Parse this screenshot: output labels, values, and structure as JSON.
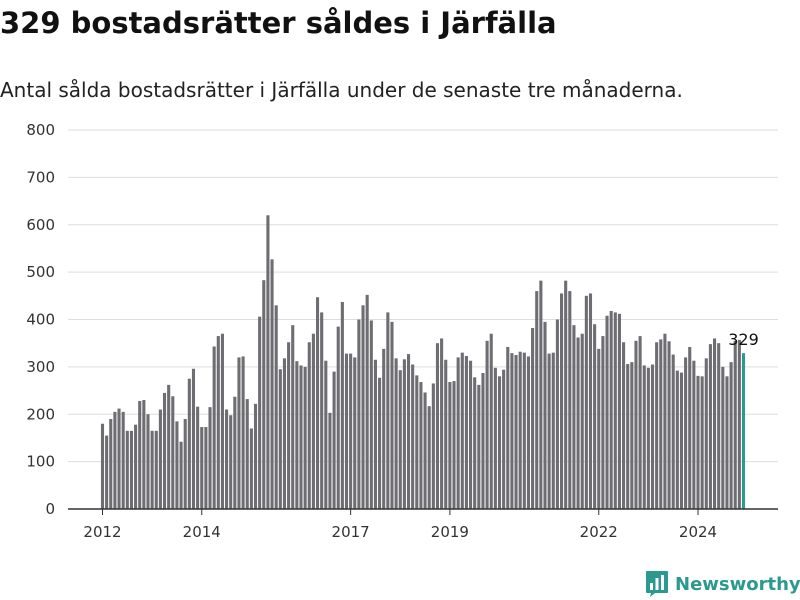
{
  "chart_data": {
    "type": "bar",
    "title": "329 bostadsrätter såldes i Järfälla",
    "subtitle": "Antal sålda bostadsrätter i Järfälla under de senaste tre månaderna.",
    "xlabel": "",
    "ylabel": "",
    "ylim": [
      0,
      800
    ],
    "yticks": [
      "0",
      "100",
      "200",
      "300",
      "400",
      "500",
      "600",
      "700",
      "800"
    ],
    "xticks": [
      {
        "label": "2012",
        "year": 2012
      },
      {
        "label": "2014",
        "year": 2014
      },
      {
        "label": "2017",
        "year": 2017
      },
      {
        "label": "2019",
        "year": 2019
      },
      {
        "label": "2022",
        "year": 2022
      },
      {
        "label": "2024",
        "year": 2024
      }
    ],
    "x_start": "2012-01",
    "x_end": "2025-01",
    "grid": "horizontal",
    "annotation": "329",
    "colors": {
      "bars": "#6e6d72",
      "highlight": "#2b9a8e",
      "grid": "#dddddd"
    },
    "values": [
      180,
      155,
      190,
      205,
      212,
      205,
      165,
      165,
      178,
      228,
      230,
      200,
      165,
      165,
      210,
      245,
      262,
      238,
      185,
      142,
      190,
      275,
      296,
      216,
      173,
      173,
      215,
      343,
      365,
      370,
      210,
      198,
      237,
      320,
      322,
      232,
      170,
      222,
      406,
      483,
      620,
      527,
      430,
      295,
      318,
      352,
      388,
      312,
      303,
      300,
      352,
      370,
      447,
      415,
      313,
      203,
      290,
      385,
      437,
      328,
      328,
      320,
      400,
      430,
      452,
      398,
      315,
      277,
      338,
      415,
      395,
      318,
      293,
      316,
      327,
      305,
      282,
      268,
      246,
      217,
      265,
      350,
      360,
      315,
      268,
      270,
      320,
      330,
      323,
      313,
      278,
      262,
      287,
      355,
      370,
      298,
      280,
      294,
      342,
      329,
      325,
      332,
      330,
      322,
      382,
      460,
      482,
      395,
      328,
      330,
      400,
      455,
      482,
      460,
      388,
      362,
      370,
      450,
      455,
      390,
      338,
      365,
      408,
      418,
      415,
      412,
      352,
      306,
      310,
      355,
      365,
      303,
      298,
      305,
      352,
      358,
      370,
      354,
      326,
      292,
      288,
      320,
      342,
      313,
      281,
      280,
      318,
      348,
      360,
      350,
      300,
      280,
      310,
      355,
      357,
      329
    ],
    "last_label": "329"
  },
  "brand": {
    "name": "Newsworthy",
    "logo_icon": "bar-chart-logo-icon",
    "color": "#2b9a8e"
  }
}
